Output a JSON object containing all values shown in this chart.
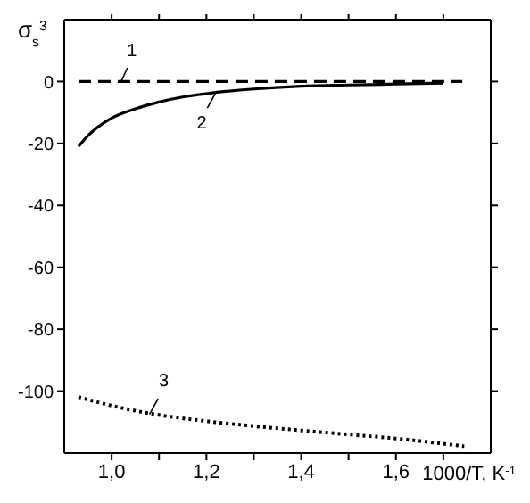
{
  "chart_data": {
    "type": "line",
    "ylabel": "σ$_{s}$$^{3}$",
    "xlabel": "1000/T, K$^{-1}$",
    "xlim": [
      0.9,
      1.8
    ],
    "xticks": [
      {
        "value": 1.0,
        "label": "1,0"
      },
      {
        "value": 1.1,
        "label": null
      },
      {
        "value": 1.2,
        "label": "1,2"
      },
      {
        "value": 1.3,
        "label": null
      },
      {
        "value": 1.4,
        "label": "1,4"
      },
      {
        "value": 1.5,
        "label": null
      },
      {
        "value": 1.6,
        "label": "1,6"
      },
      {
        "value": 1.7,
        "label": null
      }
    ],
    "ylim": [
      -120,
      20
    ],
    "yticks": [
      -100,
      -80,
      -60,
      -40,
      -20,
      0
    ],
    "marker": "none",
    "series": [
      {
        "color": "#000000",
        "line_style": "dashed",
        "x": [
          0.93,
          1.1,
          1.3,
          1.5,
          1.74
        ],
        "values": [
          0,
          0,
          0,
          0,
          0
        ]
      },
      {
        "color": "#000000",
        "line_style": "solid",
        "x": [
          0.93,
          0.95,
          1.0,
          1.05,
          1.1,
          1.15,
          1.2,
          1.3,
          1.4,
          1.5,
          1.6,
          1.7
        ],
        "values": [
          -21,
          -17.5,
          -11.8,
          -8.8,
          -6.6,
          -5,
          -3.9,
          -2.4,
          -1.5,
          -1.1,
          -0.8,
          -0.5
        ]
      },
      {
        "color": "#000000",
        "line_style": "dotted",
        "x": [
          0.93,
          1.0,
          1.1,
          1.2,
          1.3,
          1.4,
          1.5,
          1.6,
          1.744
        ],
        "values": [
          -101.9,
          -104.7,
          -107.7,
          -109.7,
          -111.3,
          -112.7,
          -114,
          -115.3,
          -117.8
        ]
      }
    ],
    "annotations": [
      {
        "text": "1",
        "x": 1.02,
        "y": 0
      },
      {
        "text": "2",
        "x": 1.22,
        "y": -3.5
      },
      {
        "text": "3",
        "x": 1.08,
        "y": -107.5
      }
    ]
  }
}
